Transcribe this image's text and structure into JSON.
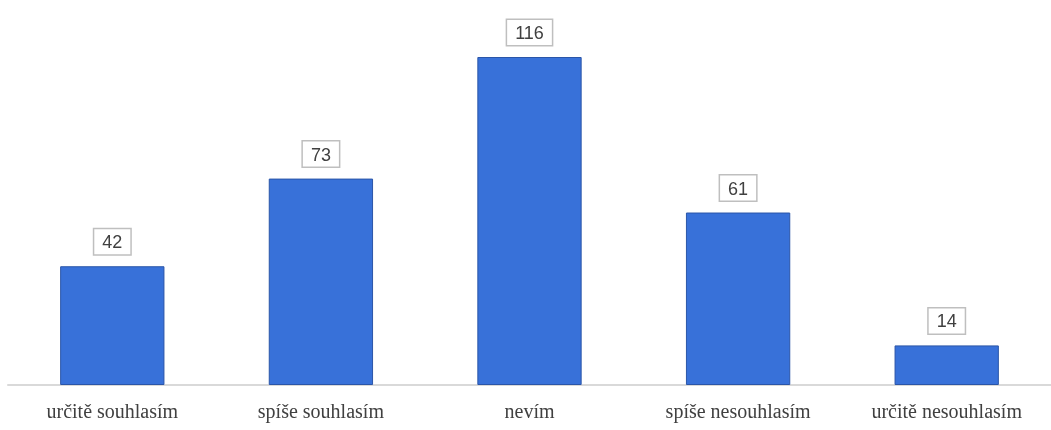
{
  "chart_data": {
    "type": "bar",
    "categories": [
      "určitě souhlasím",
      "spíše souhlasím",
      "nevím",
      "spíše nesouhlasím",
      "určitě nesouhlasím"
    ],
    "values": [
      42,
      73,
      116,
      61,
      14
    ],
    "color": "#3871d9",
    "data_labels": true
  }
}
